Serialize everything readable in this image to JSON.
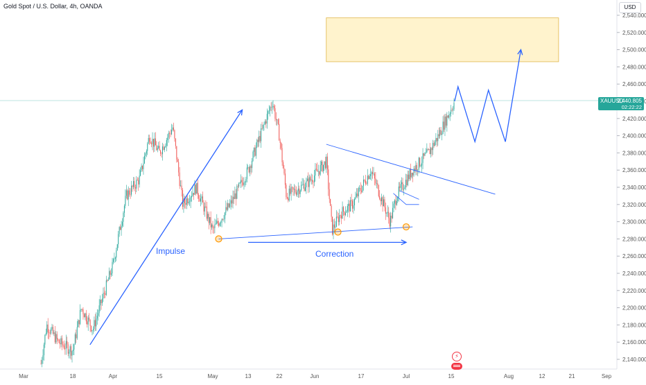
{
  "header": {
    "title": "Gold Spot / U.S. Dollar, 4h, OANDA"
  },
  "price_axis": {
    "currency": "USD",
    "ticks": [
      "2,540.000",
      "2,520.000",
      "2,500.000",
      "2,480.000",
      "2,460.000",
      "2,440.000",
      "2,420.000",
      "2,400.000",
      "2,380.000",
      "2,360.000",
      "2,340.000",
      "2,320.000",
      "2,300.000",
      "2,280.000",
      "2,260.000",
      "2,240.000",
      "2,220.000",
      "2,200.000",
      "2,180.000",
      "2,160.000",
      "2,140.000"
    ]
  },
  "time_axis": {
    "ticks": [
      "Mar",
      "18",
      "Apr",
      "15",
      "May",
      "13",
      "22",
      "Jun",
      "17",
      "Jul",
      "15",
      "Aug",
      "12",
      "21",
      "Sep"
    ]
  },
  "last_price": {
    "symbol": "XAUUSD",
    "value": "2,440.805",
    "countdown": "02:22:22"
  },
  "annotations": {
    "impulse_label": "Impulse",
    "correction_label": "Correction"
  },
  "colors": {
    "up": "#26a69a",
    "down": "#ef5350",
    "drawing": "#2962ff",
    "target_zone": "#fff3cd",
    "marker": "#ff9800"
  },
  "events": {
    "dividend_icon": "lightning-icon",
    "flag_icon": "us-flag-icon"
  },
  "chart_data": {
    "type": "candlestick",
    "title": "Gold Spot / U.S. Dollar, 4h, OANDA",
    "ylim": [
      2130,
      2550
    ],
    "x_ticks": [
      "Mar",
      "18",
      "Apr",
      "15",
      "May",
      "13",
      "22",
      "Jun",
      "17",
      "Jul",
      "15",
      "Aug",
      "12",
      "21",
      "Sep"
    ],
    "price_path": [
      [
        "Mar 7",
        2135
      ],
      [
        "Mar 9",
        2180
      ],
      [
        "Mar 13",
        2160
      ],
      [
        "Mar 18",
        2150
      ],
      [
        "Mar 21",
        2200
      ],
      [
        "Mar 25",
        2175
      ],
      [
        "Apr 1",
        2250
      ],
      [
        "Apr 5",
        2330
      ],
      [
        "Apr 9",
        2350
      ],
      [
        "Apr 12",
        2400
      ],
      [
        "Apr 15",
        2380
      ],
      [
        "Apr 19",
        2410
      ],
      [
        "Apr 22",
        2320
      ],
      [
        "Apr 26",
        2340
      ],
      [
        "May 1",
        2290
      ],
      [
        "May 3",
        2300
      ],
      [
        "May 7",
        2320
      ],
      [
        "May 13",
        2360
      ],
      [
        "May 20",
        2440
      ],
      [
        "May 22",
        2400
      ],
      [
        "May 24",
        2330
      ],
      [
        "May 30",
        2345
      ],
      [
        "Jun 5",
        2370
      ],
      [
        "Jun 7",
        2290
      ],
      [
        "Jun 10",
        2310
      ],
      [
        "Jun 14",
        2320
      ],
      [
        "Jun 20",
        2360
      ],
      [
        "Jun 24",
        2320
      ],
      [
        "Jun 26",
        2300
      ],
      [
        "Jun 28",
        2330
      ],
      [
        "Jul 3",
        2360
      ],
      [
        "Jul 8",
        2380
      ],
      [
        "Jul 11",
        2400
      ],
      [
        "Jul 16",
        2440
      ]
    ],
    "projection_path": [
      [
        "Jul 16",
        2440
      ],
      [
        "Jul 17",
        2457
      ],
      [
        "Jul 22",
        2393
      ],
      [
        "Jul 26",
        2453
      ],
      [
        "Jul 31",
        2393
      ],
      [
        "Aug 5",
        2500
      ]
    ],
    "target_zone": {
      "x_from": "Jun 5",
      "x_to": "Aug 17",
      "y_from": 2486,
      "y_to": 2537
    },
    "lines": [
      {
        "name": "impulse-arrow",
        "from": [
          "Mar 24",
          2157
        ],
        "to": [
          "May 11",
          2430
        ]
      },
      {
        "name": "support-line",
        "from": [
          "May 3",
          2280
        ],
        "to": [
          "Jul 3",
          2294
        ]
      },
      {
        "name": "resistance-line",
        "from": [
          "Jun 5",
          2390
        ],
        "to": [
          "Jul 28",
          2332
        ]
      },
      {
        "name": "correction-arrow",
        "from": [
          "May 13",
          2276
        ],
        "to": [
          "Jul 1",
          2276
        ]
      }
    ],
    "markers": [
      [
        "May 3",
        2280
      ],
      [
        "Jun 9",
        2288
      ],
      [
        "Jul 1",
        2294
      ]
    ],
    "last_price": 2440.805
  }
}
